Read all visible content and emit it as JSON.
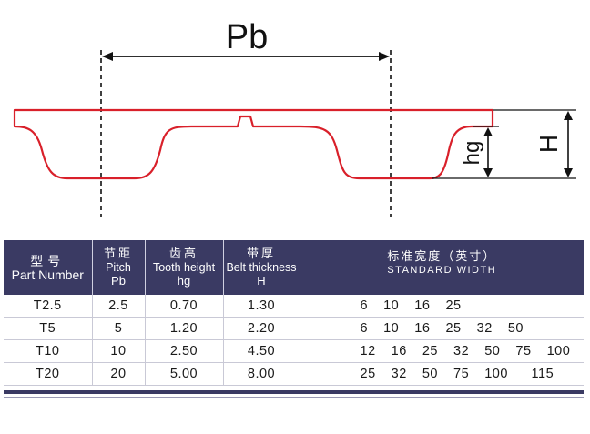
{
  "diagram": {
    "pitch_label": "Pb",
    "tooth_height_label": "hg",
    "thickness_label": "H",
    "belt_color": "#d9202a"
  },
  "table": {
    "header_color": "#3a3a63",
    "columns": [
      {
        "cn": "型号",
        "en": "Part Number",
        "sym": ""
      },
      {
        "cn": "节距",
        "en": "Pitch",
        "sym": "Pb"
      },
      {
        "cn": "齿高",
        "en": "Tooth height",
        "sym": "hg"
      },
      {
        "cn": "带厚",
        "en": "Belt thickness",
        "sym": "H"
      },
      {
        "cn": "标准宽度（英寸）",
        "en": "STANDARD WIDTH",
        "sym": ""
      }
    ],
    "rows": [
      {
        "part": "T2.5",
        "pitch": "2.5",
        "tooth_height": "0.70",
        "thickness": "1.30",
        "widths": "6  10  16  25"
      },
      {
        "part": "T5",
        "pitch": "5",
        "tooth_height": "1.20",
        "thickness": "2.20",
        "widths": "6  10  16  25  32  50"
      },
      {
        "part": "T10",
        "pitch": "10",
        "tooth_height": "2.50",
        "thickness": "4.50",
        "widths": "12  16  25  32  50  75  100"
      },
      {
        "part": "T20",
        "pitch": "20",
        "tooth_height": "5.00",
        "thickness": "8.00",
        "widths": "25  32  50  75  100   115"
      }
    ]
  }
}
